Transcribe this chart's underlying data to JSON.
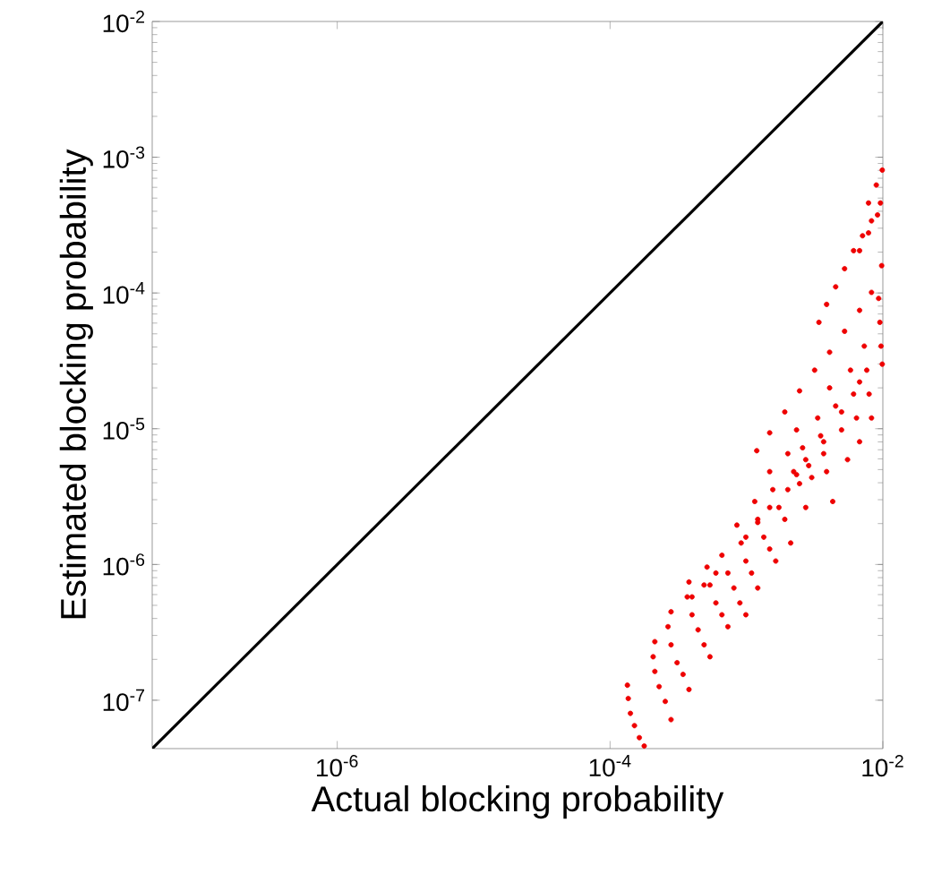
{
  "chart_data": {
    "type": "scatter",
    "xlabel": "Actual blocking probability",
    "ylabel": "Estimated blocking probability",
    "log": "xy",
    "grid": false,
    "xlim": [
      4.4e-08,
      0.01
    ],
    "ylim": [
      4.4e-08,
      0.01
    ],
    "xticks": [
      {
        "value": 1e-06,
        "label": "10$^{-6}$"
      },
      {
        "value": 0.0001,
        "label": "10$^{-4}$"
      },
      {
        "value": 0.01,
        "label": "10$^{-2}$"
      }
    ],
    "yticks": [
      {
        "value": 1e-07,
        "label": "10$^{-7}$"
      },
      {
        "value": 1e-06,
        "label": "10$^{-6}$"
      },
      {
        "value": 1e-05,
        "label": "10$^{-5}$"
      },
      {
        "value": 0.0001,
        "label": "10$^{-4}$"
      },
      {
        "value": 0.001,
        "label": "10$^{-3}$"
      },
      {
        "value": 0.01,
        "label": "10$^{-2}$"
      }
    ],
    "series": [
      {
        "type": "line",
        "color": "#000000",
        "marker": "none",
        "line_style": "solid",
        "x": [
          4.4e-08,
          0.01
        ],
        "values": [
          4.4e-08,
          0.01
        ]
      },
      {
        "color": "#ee0000",
        "marker": "circle",
        "x": [
          0.000134,
          0.000136,
          0.000141,
          0.000151,
          0.000164,
          0.000178,
          0.000213,
          0.000207,
          0.000213,
          0.000229,
          0.000254,
          0.00028,
          0.00028,
          0.000266,
          0.00028,
          0.00031,
          0.000343,
          0.000379,
          0.000379,
          0.000368,
          0.000399,
          0.000442,
          0.000489,
          0.00054,
          0.000514,
          0.00054,
          0.000597,
          0.000661,
          0.000731,
          0.000661,
          0.000731,
          0.000809,
          0.000895,
          0.00099,
          0.000851,
          0.000914,
          0.00099,
          0.00109,
          0.00121,
          0.00115,
          0.00121,
          0.00134,
          0.00148,
          0.00164,
          0.00148,
          0.00156,
          0.00173,
          0.00191,
          0.00211,
          0.00201,
          0.00222,
          0.00245,
          0.00272,
          0.00233,
          0.00258,
          0.00286,
          0.00301,
          0.00333,
          0.0035,
          0.00368,
          0.00387,
          0.00429,
          0.00407,
          0.00451,
          0.00498,
          0.00551,
          0.00579,
          0.0061,
          0.00641,
          0.00675,
          0.00731,
          0.00762,
          0.00793,
          0.00826,
          0.00931,
          0.00951,
          0.0097,
          0.0099,
          0.000399,
          0.000489,
          0.000597,
          0.00099,
          0.00121,
          0.00148,
          0.00201,
          0.00233,
          0.00272,
          0.00368,
          0.00498,
          0.00675,
          0.00119,
          0.00148,
          0.00191,
          0.00245,
          0.00316,
          0.00407,
          0.00524,
          0.00675,
          0.00826,
          0.0098,
          0.0034,
          0.00387,
          0.00451,
          0.00524,
          0.0061,
          0.0071,
          0.00826,
          0.0096,
          0.00675,
          0.00785,
          0.00914,
          0.00785,
          0.00895,
          0.0099
        ],
        "values": [
          1.29e-07,
          1.03e-07,
          8e-08,
          6.5e-08,
          5.3e-08,
          4.6e-08,
          2.7e-07,
          2.09e-07,
          1.63e-07,
          1.26e-07,
          9.8e-08,
          7.2e-08,
          4.48e-07,
          3.48e-07,
          2.56e-07,
          1.89e-07,
          1.55e-07,
          1.2e-07,
          7.43e-07,
          5.77e-07,
          4.26e-07,
          3.3e-07,
          2.56e-07,
          2.09e-07,
          9.57e-07,
          7.06e-07,
          5.21e-07,
          4.26e-07,
          3.48e-07,
          1.17e-06,
          8.65e-07,
          6.71e-07,
          5.21e-07,
          4.26e-07,
          1.95e-06,
          1.44e-06,
          1.06e-06,
          8.65e-07,
          6.71e-07,
          2.91e-06,
          2.15e-06,
          1.59e-06,
          1.3e-06,
          1.06e-06,
          4.83e-06,
          3.56e-06,
          2.63e-06,
          2.15e-06,
          1.44e-06,
          6.55e-06,
          4.83e-06,
          3.94e-06,
          2.63e-06,
          9.8e-06,
          7.24e-06,
          5.35e-06,
          4.37e-06,
          1.2e-05,
          8.87e-06,
          6.55e-06,
          4.83e-06,
          2.91e-06,
          2e-05,
          1.47e-05,
          9.8e-06,
          5.92e-06,
          2.7e-05,
          1.8e-05,
          1.2e-05,
          8.02e-06,
          4.06e-05,
          2.7e-05,
          1.8e-05,
          1.2e-05,
          9.12e-05,
          6.08e-05,
          4.06e-05,
          2.99e-05,
          5.77e-07,
          7.06e-07,
          8.65e-07,
          1.59e-06,
          2.04e-06,
          2.63e-06,
          3.56e-06,
          4.59e-06,
          5.92e-06,
          8.02e-06,
          1.33e-05,
          2.21e-05,
          6.89e-06,
          9.33e-06,
          1.33e-05,
          1.9e-05,
          2.7e-05,
          3.66e-05,
          5.22e-05,
          7.45e-05,
          0.000101,
          0.000159,
          6.08e-05,
          8.24e-05,
          0.000111,
          0.000151,
          0.000205,
          0.000264,
          0.00034,
          0.00046,
          0.000205,
          0.000277,
          0.000376,
          0.00046,
          0.000624,
          0.000804
        ]
      }
    ]
  }
}
